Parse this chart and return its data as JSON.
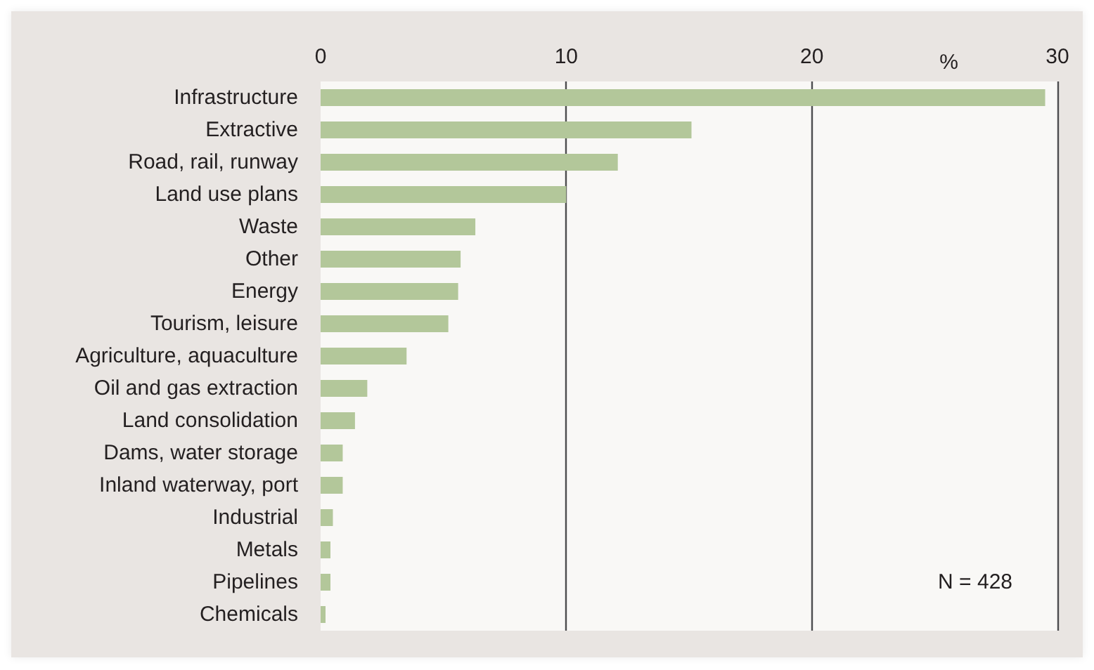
{
  "chart_data": {
    "type": "bar",
    "orientation": "horizontal",
    "xlabel": "%",
    "categories": [
      "Infrastructure",
      "Extractive",
      "Road, rail, runway",
      "Land use plans",
      "Waste",
      "Other",
      "Energy",
      "Tourism, leisure",
      "Agriculture, aquaculture",
      "Oil and gas extraction",
      "Land consolidation",
      "Dams, water storage",
      "Inland waterway, port",
      "Industrial",
      "Metals",
      "Pipelines",
      "Chemicals"
    ],
    "values": [
      29.5,
      15.1,
      12.1,
      10.0,
      6.3,
      5.7,
      5.6,
      5.2,
      3.5,
      1.9,
      1.4,
      0.9,
      0.9,
      0.5,
      0.4,
      0.4,
      0.2
    ],
    "color": "#b3c79a",
    "xlim": [
      0,
      30
    ],
    "xticks": [
      0,
      10,
      20,
      30
    ],
    "grid": "x",
    "annotations": [
      "N = 428"
    ]
  }
}
